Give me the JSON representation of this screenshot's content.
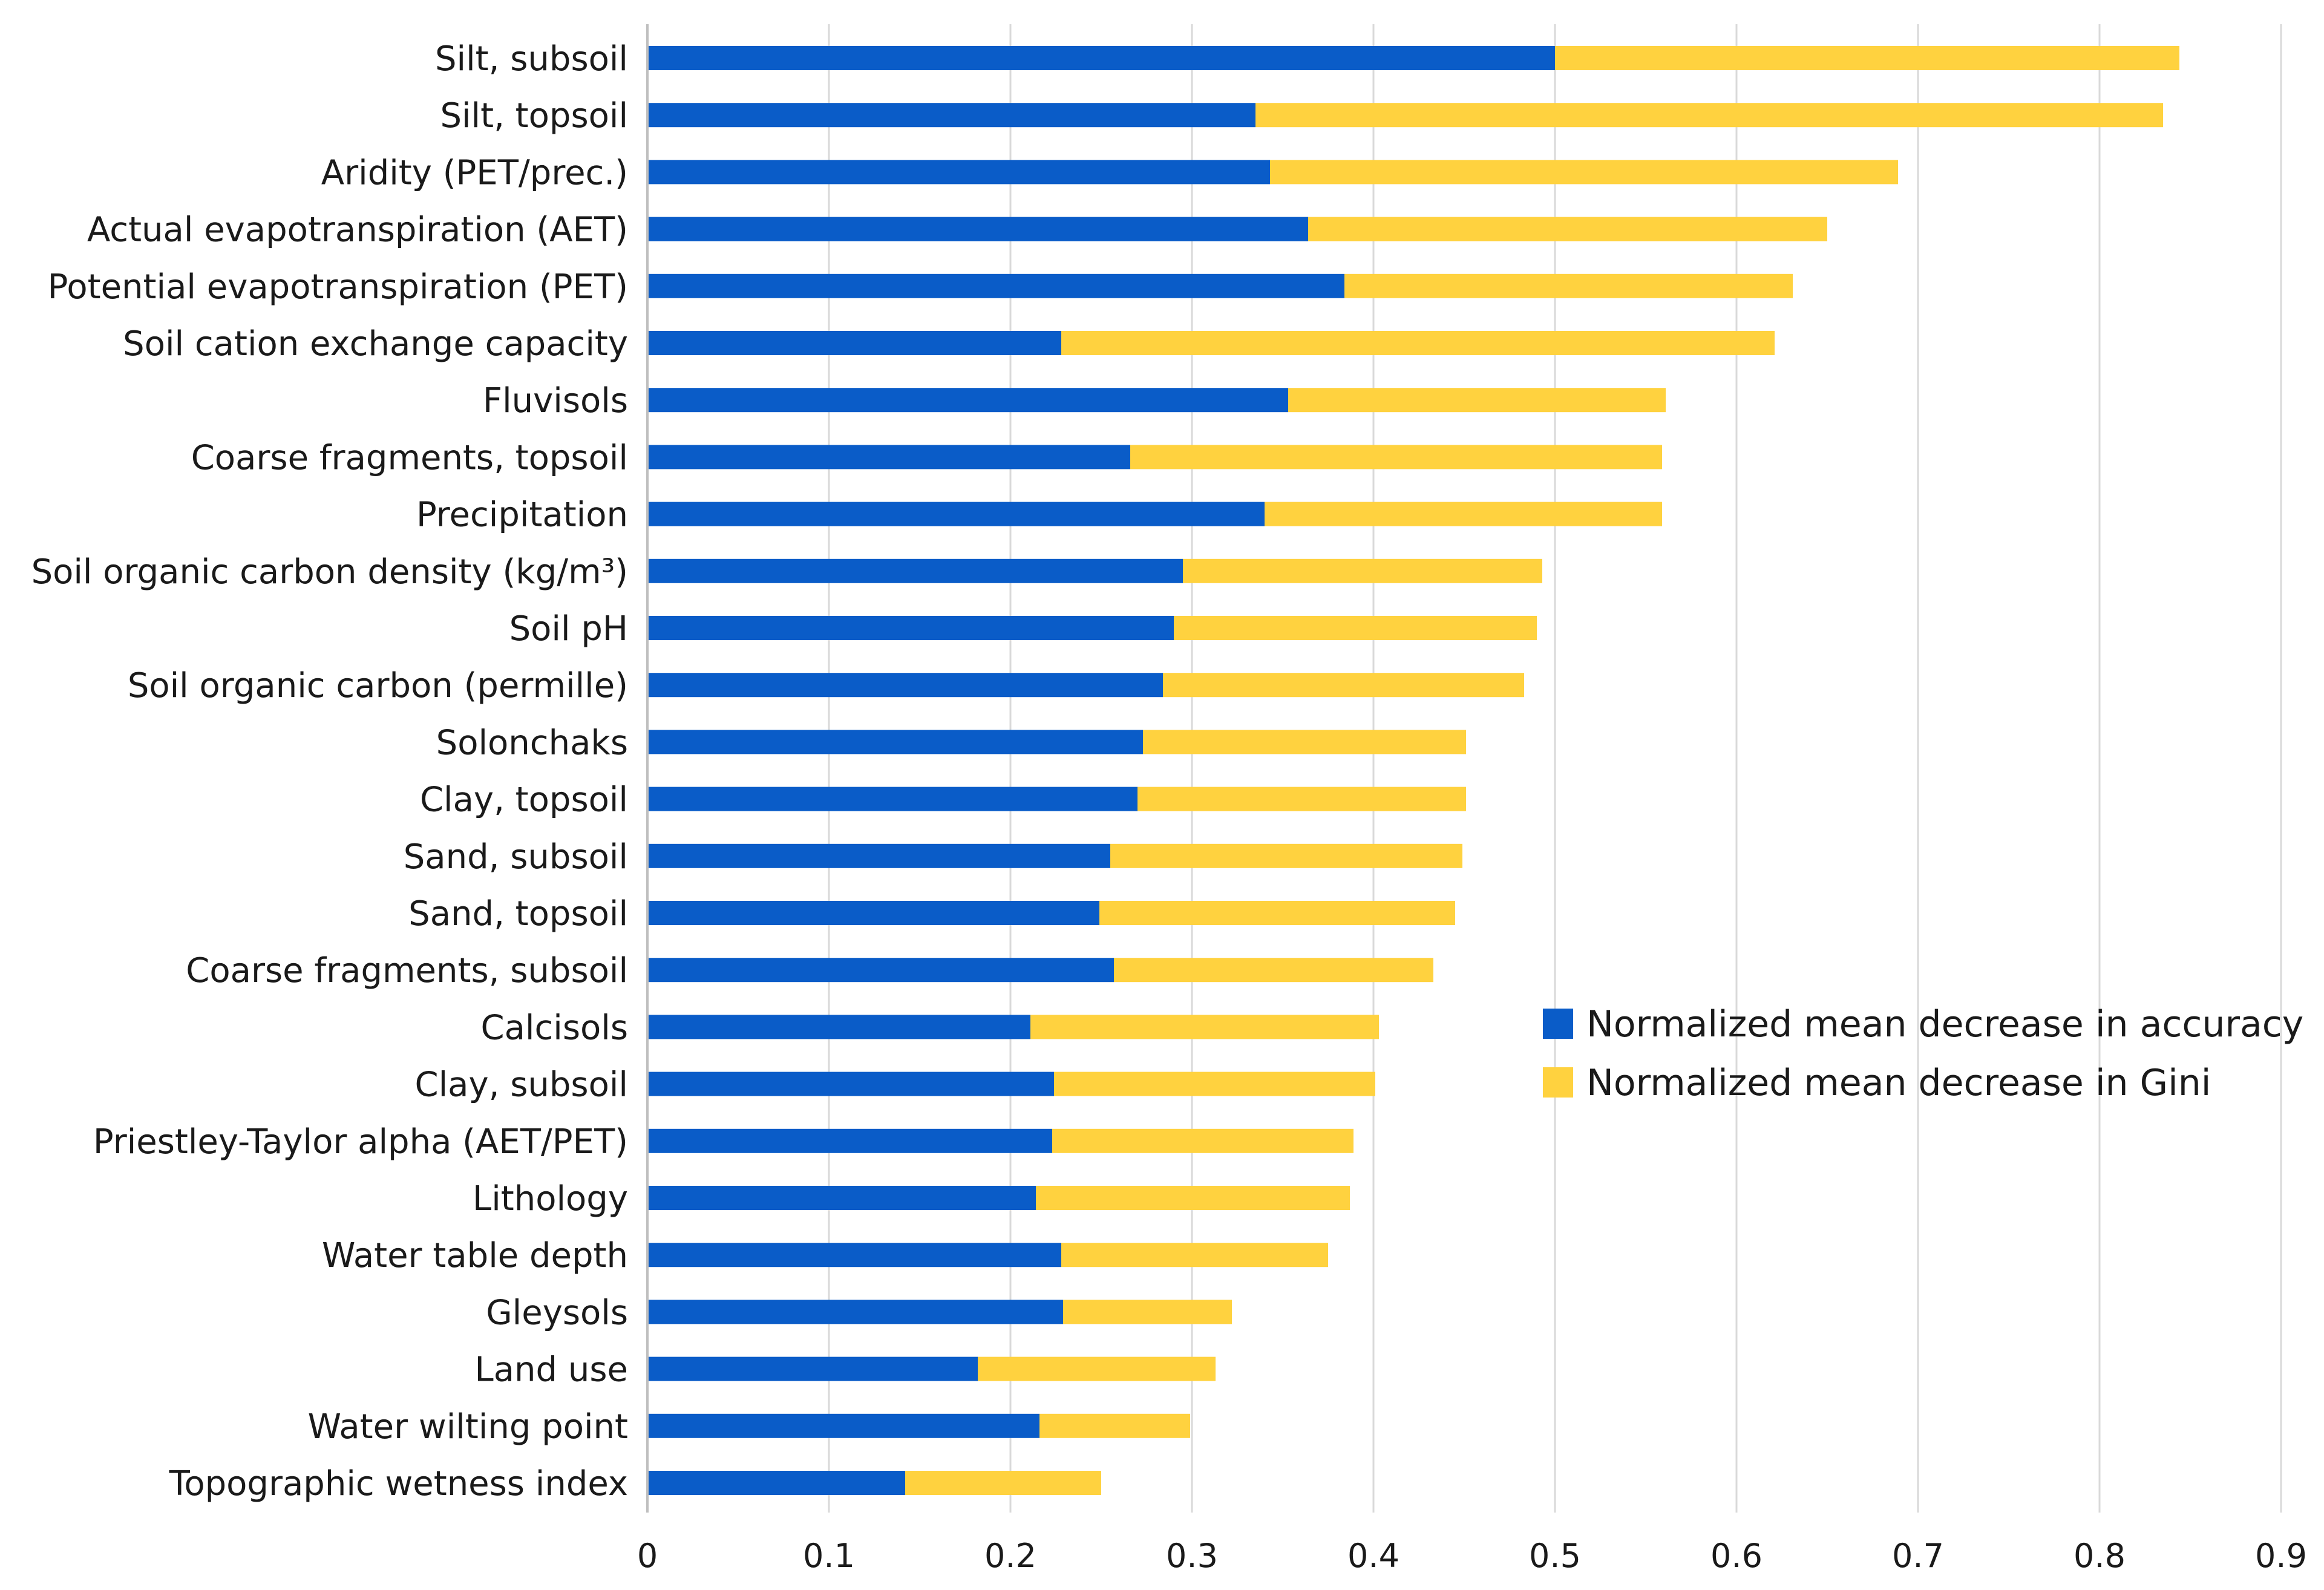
{
  "chart_data": {
    "type": "bar",
    "stacked": true,
    "orientation": "horizontal",
    "categories": [
      "Silt, subsoil",
      "Silt, topsoil",
      "Aridity (PET/prec.)",
      "Actual evapotranspiration (AET)",
      "Potential evapotranspiration (PET)",
      "Soil cation exchange capacity",
      "Fluvisols",
      "Coarse fragments, topsoil",
      "Precipitation",
      "Soil organic carbon density (kg/m³)",
      "Soil pH",
      "Soil organic carbon (permille)",
      "Solonchaks",
      "Clay, topsoil",
      "Sand, subsoil",
      "Sand, topsoil",
      "Coarse fragments, subsoil",
      "Calcisols",
      "Clay, subsoil",
      "Priestley-Taylor alpha (AET/PET)",
      "Lithology",
      "Water table depth",
      "Gleysols",
      "Land use",
      "Water wilting point",
      "Topographic wetness index"
    ],
    "series": [
      {
        "name": "Normalized mean decrease in accuracy",
        "color": "#0a5cc8",
        "values": [
          0.5,
          0.335,
          0.343,
          0.364,
          0.384,
          0.228,
          0.353,
          0.266,
          0.34,
          0.295,
          0.29,
          0.284,
          0.273,
          0.27,
          0.255,
          0.249,
          0.257,
          0.211,
          0.224,
          0.223,
          0.214,
          0.228,
          0.229,
          0.182,
          0.216,
          0.142
        ]
      },
      {
        "name": "Normalized mean decrease in Gini",
        "color": "#ffd23f",
        "values": [
          0.344,
          0.5,
          0.346,
          0.286,
          0.247,
          0.393,
          0.208,
          0.293,
          0.219,
          0.198,
          0.2,
          0.199,
          0.178,
          0.181,
          0.194,
          0.196,
          0.176,
          0.192,
          0.177,
          0.166,
          0.173,
          0.147,
          0.093,
          0.131,
          0.083,
          0.108
        ]
      }
    ],
    "x_ticks": [
      "0",
      "0.1",
      "0.2",
      "0.3",
      "0.4",
      "0.5",
      "0.6",
      "0.7",
      "0.8",
      "0.9"
    ],
    "xlim": [
      0,
      0.9
    ],
    "grid": true,
    "legend": "right-center",
    "title": "",
    "xlabel": "",
    "ylabel": ""
  }
}
